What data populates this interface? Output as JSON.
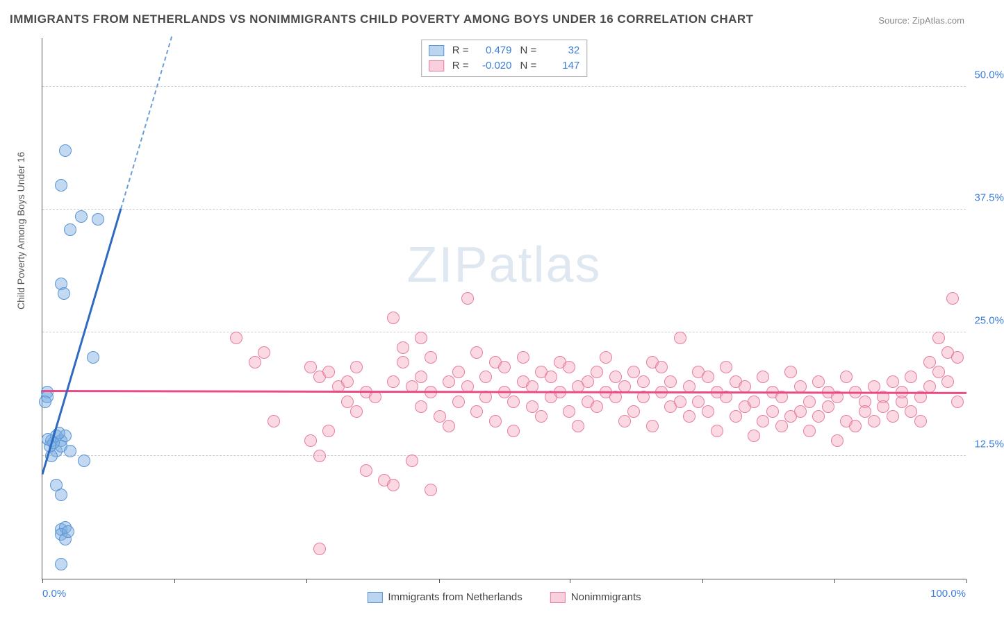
{
  "title": "IMMIGRANTS FROM NETHERLANDS VS NONIMMIGRANTS CHILD POVERTY AMONG BOYS UNDER 16 CORRELATION CHART",
  "source_label": "Source:",
  "source_value": "ZipAtlas.com",
  "watermark": "ZIPatlas",
  "y_axis_label": "Child Poverty Among Boys Under 16",
  "chart": {
    "type": "scatter",
    "xlim": [
      0,
      100
    ],
    "ylim": [
      0,
      55
    ],
    "y_ticks": [
      12.5,
      25.0,
      37.5,
      50.0
    ],
    "y_tick_labels": [
      "12.5%",
      "25.0%",
      "37.5%",
      "50.0%"
    ],
    "x_tick_positions": [
      0,
      14.3,
      28.6,
      42.9,
      57.1,
      71.4,
      85.7,
      100
    ],
    "x_min_label": "0.0%",
    "x_max_label": "100.0%",
    "background_color": "#ffffff",
    "grid_color": "#cccccc",
    "series": [
      {
        "name": "Immigrants from Netherlands",
        "color_fill": "rgba(120,170,225,0.45)",
        "color_stroke": "#5a95d6",
        "trend_color": "#2e6bc0",
        "R": "0.479",
        "N": "32",
        "trend_solid": {
          "x1": 0,
          "y1": 10.5,
          "x2": 8.5,
          "y2": 37.5
        },
        "trend_dash": {
          "x1": 8.5,
          "y1": 37.5,
          "x2": 14,
          "y2": 55
        },
        "points": [
          [
            2.5,
            43.5
          ],
          [
            2.0,
            40.0
          ],
          [
            4.2,
            36.8
          ],
          [
            6.0,
            36.5
          ],
          [
            3.0,
            35.5
          ],
          [
            2.0,
            30.0
          ],
          [
            2.3,
            29.0
          ],
          [
            0.5,
            19.0
          ],
          [
            0.5,
            18.5
          ],
          [
            5.5,
            22.5
          ],
          [
            0.3,
            18.0
          ],
          [
            1.0,
            14.0
          ],
          [
            1.5,
            14.5
          ],
          [
            2.0,
            14.0
          ],
          [
            2.5,
            14.5
          ],
          [
            1.5,
            13.0
          ],
          [
            2.0,
            13.5
          ],
          [
            3.0,
            13.0
          ],
          [
            1.0,
            12.5
          ],
          [
            4.5,
            12.0
          ],
          [
            1.5,
            9.5
          ],
          [
            2.0,
            8.5
          ],
          [
            2.0,
            5.0
          ],
          [
            2.5,
            5.2
          ],
          [
            2.0,
            4.5
          ],
          [
            2.5,
            4.0
          ],
          [
            2.8,
            4.8
          ],
          [
            2.0,
            1.5
          ],
          [
            0.8,
            13.5
          ],
          [
            1.2,
            13.8
          ],
          [
            1.8,
            14.8
          ],
          [
            0.6,
            14.2
          ]
        ]
      },
      {
        "name": "Nonimmigrants",
        "color_fill": "rgba(245,160,185,0.4)",
        "color_stroke": "#e77ca0",
        "trend_color": "#e94b86",
        "R": "-0.020",
        "N": "147",
        "trend_solid": {
          "x1": 0,
          "y1": 19.0,
          "x2": 100,
          "y2": 18.8
        },
        "points": [
          [
            21,
            24.5
          ],
          [
            23,
            22.0
          ],
          [
            24,
            23.0
          ],
          [
            25,
            16.0
          ],
          [
            29,
            21.5
          ],
          [
            29,
            14.0
          ],
          [
            30,
            20.5
          ],
          [
            30,
            12.5
          ],
          [
            30,
            3.0
          ],
          [
            31,
            21.0
          ],
          [
            31,
            15.0
          ],
          [
            32,
            19.5
          ],
          [
            33,
            20.0
          ],
          [
            33,
            18.0
          ],
          [
            34,
            21.5
          ],
          [
            34,
            17.0
          ],
          [
            35,
            19.0
          ],
          [
            35,
            11.0
          ],
          [
            36,
            18.5
          ],
          [
            37,
            10.0
          ],
          [
            38,
            26.5
          ],
          [
            38,
            20.0
          ],
          [
            38,
            9.5
          ],
          [
            39,
            23.5
          ],
          [
            39,
            22.0
          ],
          [
            40,
            19.5
          ],
          [
            40,
            12.0
          ],
          [
            41,
            24.5
          ],
          [
            41,
            20.5
          ],
          [
            41,
            17.5
          ],
          [
            42,
            22.5
          ],
          [
            42,
            19.0
          ],
          [
            42,
            9.0
          ],
          [
            43,
            16.5
          ],
          [
            44,
            20.0
          ],
          [
            44,
            15.5
          ],
          [
            45,
            21.0
          ],
          [
            45,
            18.0
          ],
          [
            46,
            28.5
          ],
          [
            46,
            19.5
          ],
          [
            47,
            17.0
          ],
          [
            47,
            23.0
          ],
          [
            48,
            20.5
          ],
          [
            48,
            18.5
          ],
          [
            49,
            22.0
          ],
          [
            49,
            16.0
          ],
          [
            50,
            19.0
          ],
          [
            50,
            21.5
          ],
          [
            51,
            18.0
          ],
          [
            51,
            15.0
          ],
          [
            52,
            20.0
          ],
          [
            52,
            22.5
          ],
          [
            53,
            17.5
          ],
          [
            53,
            19.5
          ],
          [
            54,
            21.0
          ],
          [
            54,
            16.5
          ],
          [
            55,
            18.5
          ],
          [
            55,
            20.5
          ],
          [
            56,
            19.0
          ],
          [
            56,
            22.0
          ],
          [
            57,
            17.0
          ],
          [
            57,
            21.5
          ],
          [
            58,
            19.5
          ],
          [
            58,
            15.5
          ],
          [
            59,
            20.0
          ],
          [
            59,
            18.0
          ],
          [
            60,
            21.0
          ],
          [
            60,
            17.5
          ],
          [
            61,
            19.0
          ],
          [
            61,
            22.5
          ],
          [
            62,
            18.5
          ],
          [
            62,
            20.5
          ],
          [
            63,
            16.0
          ],
          [
            63,
            19.5
          ],
          [
            64,
            21.0
          ],
          [
            64,
            17.0
          ],
          [
            65,
            20.0
          ],
          [
            65,
            18.5
          ],
          [
            66,
            22.0
          ],
          [
            66,
            15.5
          ],
          [
            67,
            19.0
          ],
          [
            67,
            21.5
          ],
          [
            68,
            17.5
          ],
          [
            68,
            20.0
          ],
          [
            69,
            18.0
          ],
          [
            69,
            24.5
          ],
          [
            70,
            19.5
          ],
          [
            70,
            16.5
          ],
          [
            71,
            21.0
          ],
          [
            71,
            18.0
          ],
          [
            72,
            20.5
          ],
          [
            72,
            17.0
          ],
          [
            73,
            19.0
          ],
          [
            73,
            15.0
          ],
          [
            74,
            18.5
          ],
          [
            74,
            21.5
          ],
          [
            75,
            20.0
          ],
          [
            75,
            16.5
          ],
          [
            76,
            19.5
          ],
          [
            76,
            17.5
          ],
          [
            77,
            18.0
          ],
          [
            77,
            14.5
          ],
          [
            78,
            20.5
          ],
          [
            78,
            16.0
          ],
          [
            79,
            19.0
          ],
          [
            79,
            17.0
          ],
          [
            80,
            18.5
          ],
          [
            80,
            15.5
          ],
          [
            81,
            21.0
          ],
          [
            81,
            16.5
          ],
          [
            82,
            19.5
          ],
          [
            82,
            17.0
          ],
          [
            83,
            18.0
          ],
          [
            83,
            15.0
          ],
          [
            84,
            20.0
          ],
          [
            84,
            16.5
          ],
          [
            85,
            19.0
          ],
          [
            85,
            17.5
          ],
          [
            86,
            18.5
          ],
          [
            86,
            14.0
          ],
          [
            87,
            20.5
          ],
          [
            87,
            16.0
          ],
          [
            88,
            19.0
          ],
          [
            88,
            15.5
          ],
          [
            89,
            18.0
          ],
          [
            89,
            17.0
          ],
          [
            90,
            19.5
          ],
          [
            90,
            16.0
          ],
          [
            91,
            18.5
          ],
          [
            91,
            17.5
          ],
          [
            92,
            20.0
          ],
          [
            92,
            16.5
          ],
          [
            93,
            18.0
          ],
          [
            93,
            19.0
          ],
          [
            94,
            17.0
          ],
          [
            94,
            20.5
          ],
          [
            95,
            18.5
          ],
          [
            95,
            16.0
          ],
          [
            96,
            22.0
          ],
          [
            96,
            19.5
          ],
          [
            97,
            24.5
          ],
          [
            97,
            21.0
          ],
          [
            98,
            23.0
          ],
          [
            98,
            20.0
          ],
          [
            98.5,
            28.5
          ],
          [
            99,
            22.5
          ],
          [
            99,
            18.0
          ]
        ]
      }
    ]
  },
  "legend_top": [
    {
      "swatch": "blue",
      "R_label": "R =",
      "R_value": "0.479",
      "N_label": "N =",
      "N_value": "32"
    },
    {
      "swatch": "pink",
      "R_label": "R =",
      "R_value": "-0.020",
      "N_label": "N =",
      "N_value": "147"
    }
  ],
  "legend_bottom": [
    {
      "swatch": "blue",
      "label": "Immigrants from Netherlands"
    },
    {
      "swatch": "pink",
      "label": "Nonimmigrants"
    }
  ]
}
